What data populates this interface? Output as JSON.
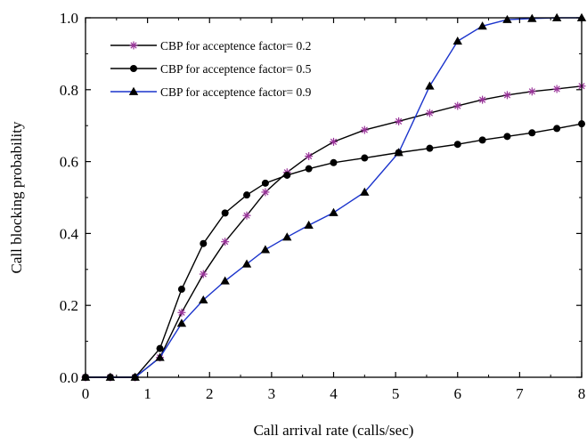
{
  "chart_data": {
    "type": "line",
    "title": "",
    "xlabel": "Call arrival rate (calls/sec)",
    "ylabel": "Call blocking probability",
    "xlim": [
      0,
      8
    ],
    "ylim": [
      0,
      1.0
    ],
    "xticks": [
      "0",
      "1",
      "2",
      "3",
      "4",
      "5",
      "6",
      "7",
      "8"
    ],
    "yticks": [
      "0.0",
      "0.2",
      "0.4",
      "0.6",
      "0.8",
      "1.0"
    ],
    "grid": false,
    "legend_position": "top-left",
    "series": [
      {
        "name": "CBP for acceptence factor= 0.2",
        "marker": "asterisk",
        "color": "#000000",
        "marker_color": "#993399",
        "x": [
          0,
          0.4,
          0.8,
          1.2,
          1.55,
          1.9,
          2.25,
          2.6,
          2.9,
          3.25,
          3.6,
          4.0,
          4.5,
          5.05,
          5.55,
          6.0,
          6.4,
          6.8,
          7.2,
          7.6,
          8.0
        ],
        "y": [
          0,
          0,
          0,
          0.055,
          0.18,
          0.287,
          0.377,
          0.45,
          0.515,
          0.57,
          0.615,
          0.655,
          0.688,
          0.712,
          0.735,
          0.755,
          0.772,
          0.785,
          0.795,
          0.802,
          0.81
        ]
      },
      {
        "name": "CBP for acceptence factor= 0.5",
        "marker": "circle",
        "color": "#000000",
        "marker_color": "#000000",
        "x": [
          0,
          0.4,
          0.8,
          1.2,
          1.55,
          1.9,
          2.25,
          2.6,
          2.9,
          3.25,
          3.6,
          4.0,
          4.5,
          5.05,
          5.55,
          6.0,
          6.4,
          6.8,
          7.2,
          7.6,
          8.0
        ],
        "y": [
          0,
          0,
          0,
          0.08,
          0.245,
          0.372,
          0.457,
          0.507,
          0.54,
          0.562,
          0.58,
          0.597,
          0.61,
          0.625,
          0.637,
          0.648,
          0.66,
          0.67,
          0.68,
          0.692,
          0.705
        ]
      },
      {
        "name": "CBP for acceptence factor= 0.9",
        "marker": "triangle",
        "color": "#1a33cc",
        "marker_color": "#000000",
        "x": [
          0,
          0.4,
          0.8,
          1.2,
          1.55,
          1.9,
          2.25,
          2.6,
          2.9,
          3.25,
          3.6,
          4.0,
          4.5,
          5.05,
          5.55,
          6.0,
          6.4,
          6.8,
          7.2,
          7.6,
          8.0
        ],
        "y": [
          0,
          0,
          0,
          0.055,
          0.15,
          0.215,
          0.268,
          0.315,
          0.355,
          0.39,
          0.423,
          0.458,
          0.515,
          0.625,
          0.81,
          0.935,
          0.977,
          0.995,
          0.998,
          1.0,
          1.0
        ]
      }
    ]
  }
}
